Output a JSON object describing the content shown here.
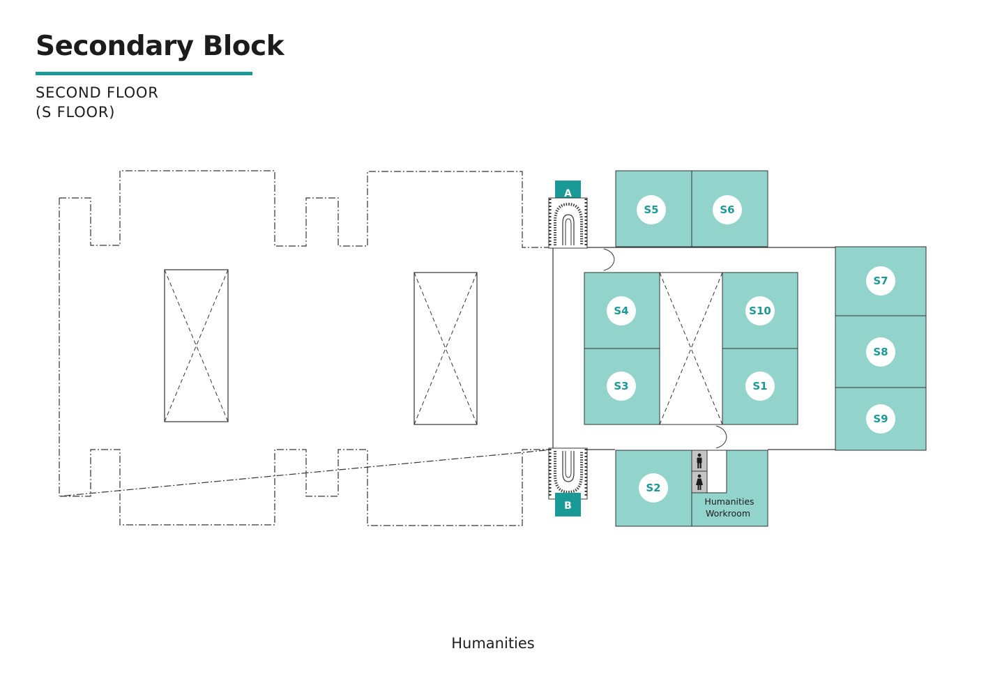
{
  "header": {
    "title": "Secondary Block",
    "subtitle_line1": "SECOND FLOOR",
    "subtitle_line2": "(S FLOOR)"
  },
  "colors": {
    "accent": "#1a9a96",
    "room_fill": "#92d3cc",
    "stair_badge": "#1a9a96",
    "line": "#333333"
  },
  "stairs": {
    "a": "A",
    "b": "B"
  },
  "rooms": {
    "s1": "S1",
    "s2": "S2",
    "s3": "S3",
    "s4": "S4",
    "s5": "S5",
    "s6": "S6",
    "s7": "S7",
    "s8": "S8",
    "s9": "S9",
    "s10": "S10",
    "workroom_line1": "Humanities",
    "workroom_line2": "Workroom"
  },
  "icons": {
    "male_toilet": "male-toilet-icon",
    "female_toilet": "female-toilet-icon"
  },
  "footer": {
    "label": "Humanities"
  }
}
